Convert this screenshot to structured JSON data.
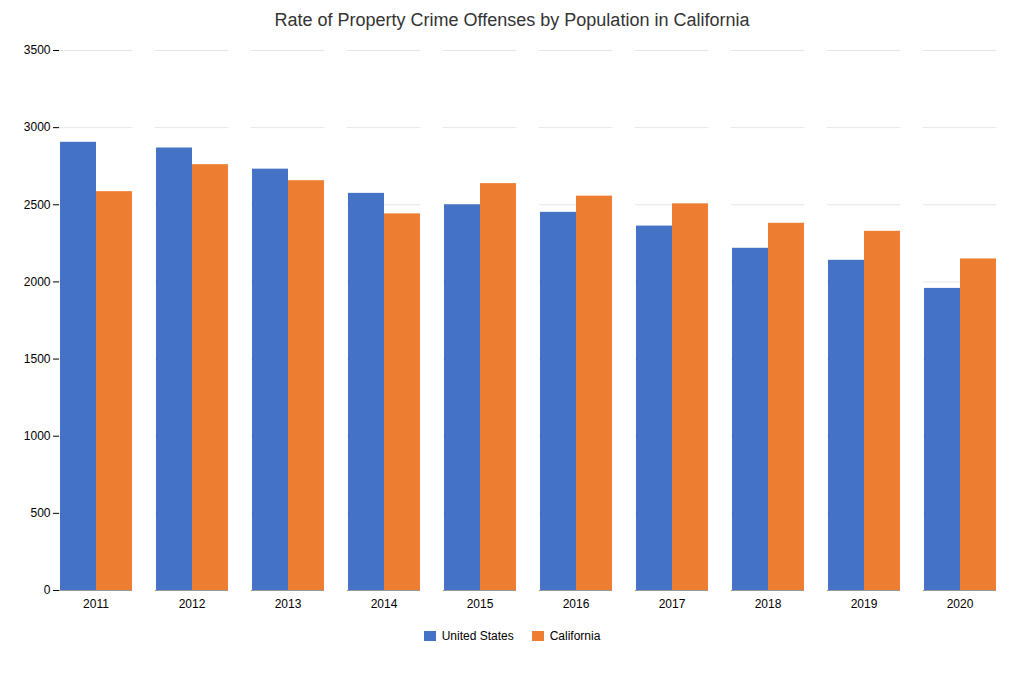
{
  "chart_data": {
    "type": "bar",
    "title": "Rate of Property Crime Offenses by Population in California",
    "categories": [
      "2011",
      "2012",
      "2013",
      "2014",
      "2015",
      "2016",
      "2017",
      "2018",
      "2019",
      "2020"
    ],
    "series": [
      {
        "name": "United States",
        "color": "#4472C4",
        "values": [
          2905,
          2868,
          2731,
          2574,
          2500,
          2451,
          2362,
          2218,
          2140,
          1958
        ]
      },
      {
        "name": "California",
        "color": "#ED7D31",
        "values": [
          2585,
          2760,
          2656,
          2441,
          2637,
          2556,
          2506,
          2380,
          2328,
          2149
        ]
      }
    ],
    "ylim": [
      0,
      3500
    ],
    "yticks": [
      0,
      500,
      1000,
      1500,
      2000,
      2500,
      3000,
      3500
    ],
    "grid": true,
    "legend": "bottom"
  }
}
